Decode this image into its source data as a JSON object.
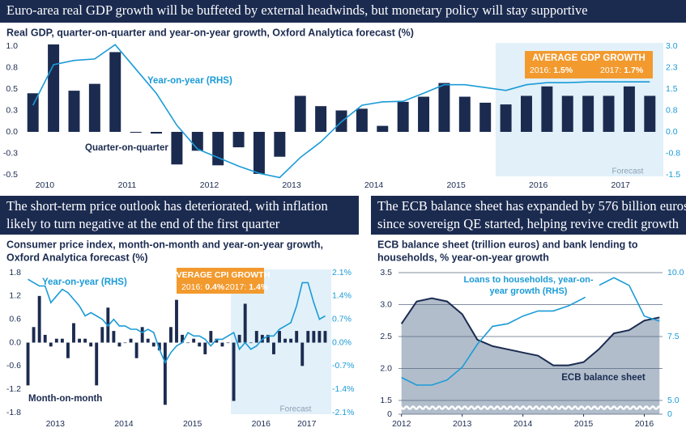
{
  "chart_data": [
    {
      "type": "bar",
      "title": [
        "Euro-area real GDP growth will be buffeted by external headwinds, but monetary policy will stay supportive"
      ],
      "subtitle": [
        "Real GDP, quarter-on-quarter and year-on-year growth, Oxford Analytica forecast (%)"
      ],
      "categories": [
        null,
        "2010",
        null,
        null,
        null,
        "2011",
        null,
        null,
        null,
        "2012",
        null,
        null,
        null,
        "2013",
        null,
        null,
        null,
        "2014",
        null,
        null,
        null,
        "2015",
        null,
        null,
        null,
        "2016",
        null,
        null,
        null,
        "2017",
        null
      ],
      "series": [
        {
          "name": "Quarter-on-quarter",
          "type": "bar",
          "color": "#1b2b50",
          "values": [
            0.45,
            1.02,
            0.48,
            0.56,
            0.93,
            -0.01,
            -0.02,
            -0.38,
            -0.22,
            -0.39,
            -0.18,
            -0.49,
            -0.29,
            0.42,
            0.3,
            0.25,
            0.27,
            0.07,
            0.35,
            0.41,
            0.57,
            0.41,
            0.34,
            0.32,
            0.42,
            0.53,
            0.42,
            0.42,
            0.42,
            0.53,
            0.42
          ]
        },
        {
          "name": "Year-on-year (RHS)",
          "type": "line",
          "axis": "y2",
          "color": "#1a9bd7",
          "values": [
            0.93,
            2.35,
            2.5,
            2.55,
            3.05,
            2.2,
            1.35,
            0.23,
            -0.6,
            -0.9,
            -1.2,
            -1.45,
            -1.6,
            -0.9,
            -0.35,
            0.35,
            0.93,
            1.05,
            1.07,
            1.35,
            1.65,
            1.65,
            1.55,
            1.45,
            1.65,
            1.72,
            1.72,
            1.75,
            1.75,
            1.75,
            1.75
          ]
        }
      ],
      "ylim": [
        -0.5,
        1.0
      ],
      "yticks": [
        {
          "value": 1.0,
          "label": "1.0"
        },
        {
          "value": 0.75,
          "label": "0.8"
        },
        {
          "value": 0.5,
          "label": "0.5"
        },
        {
          "value": 0.25,
          "label": "0.3"
        },
        {
          "value": 0,
          "label": "0.0"
        },
        {
          "value": -0.25,
          "label": "-0.3"
        },
        {
          "value": -0.5,
          "label": "-0.5"
        }
      ],
      "y2lim": [
        -1.5,
        3.0
      ],
      "y2ticks": [
        {
          "value": 3.0,
          "label": "3.0"
        },
        {
          "value": 2.25,
          "label": "2.3"
        },
        {
          "value": 1.5,
          "label": "1.5"
        },
        {
          "value": 0.75,
          "label": "0.8"
        },
        {
          "value": 0,
          "label": "0.0"
        },
        {
          "value": -0.75,
          "label": "-0.8"
        },
        {
          "value": -1.5,
          "label": "-1.5"
        }
      ],
      "grid": false,
      "forecast": {
        "label": "Forecast",
        "from_index": 23
      },
      "highlight": {
        "title": "AVERAGE GDP GROWTH",
        "items": [
          [
            "2016:",
            "1.5%"
          ],
          [
            "2017:",
            "1.7%"
          ]
        ]
      }
    },
    {
      "type": "bar",
      "title": [
        "The short-term price outlook has deteriorated, with inflation",
        "likely to turn negative at the end of the first quarter"
      ],
      "subtitle": [
        "Consumer price index, month-on-month and year-on-year growth,",
        "Oxford Analytica forecast (%)"
      ],
      "categories": [
        null,
        null,
        null,
        null,
        null,
        "2013",
        null,
        null,
        null,
        null,
        null,
        null,
        null,
        null,
        null,
        null,
        null,
        "2014",
        null,
        null,
        null,
        null,
        null,
        null,
        null,
        null,
        null,
        null,
        null,
        "2015",
        null,
        null,
        null,
        null,
        null,
        null,
        null,
        null,
        null,
        null,
        null,
        "2016",
        null,
        null,
        null,
        null,
        null,
        null,
        null,
        "2017",
        null,
        null,
        null
      ],
      "series": [
        {
          "name": "Month-on-month",
          "type": "bar",
          "color": "#1b2b50",
          "values": [
            -1.1,
            0.4,
            1.2,
            0.2,
            -0.1,
            0.1,
            0.1,
            -0.4,
            0.5,
            0.1,
            0.1,
            -0.1,
            -1.1,
            0.4,
            0.9,
            0.3,
            -0.1,
            0.0,
            0.1,
            -0.4,
            0.4,
            0.1,
            -0.1,
            -0.2,
            -1.6,
            0.4,
            1.1,
            0.2,
            0.0,
            0.1,
            -0.1,
            -0.3,
            0.3,
            0.1,
            -0.1,
            0.0,
            -1.5,
            0.2,
            1.0,
            0.0,
            0.3,
            0.2,
            0.2,
            -0.3,
            0.3,
            0.1,
            0.1,
            0.3,
            -0.6,
            0.3,
            0.3,
            0.3,
            0.3
          ]
        },
        {
          "name": "Year-on-year (RHS)",
          "type": "line",
          "axis": "y2",
          "color": "#1a9bd7",
          "values": [
            1.9,
            1.8,
            1.7,
            1.7,
            1.2,
            1.4,
            1.6,
            1.5,
            1.3,
            1.1,
            0.8,
            0.9,
            0.8,
            0.7,
            0.5,
            0.7,
            0.5,
            0.5,
            0.4,
            0.4,
            0.3,
            0.4,
            0.3,
            -0.2,
            -0.6,
            -0.3,
            -0.1,
            0.0,
            0.3,
            0.2,
            0.2,
            0.1,
            -0.1,
            0.1,
            0.1,
            0.2,
            0.3,
            -0.2,
            0.0,
            -0.2,
            -0.1,
            0.1,
            0.2,
            0.2,
            0.4,
            0.5,
            0.6,
            1.1,
            1.8,
            1.8,
            1.2,
            0.7,
            0.8
          ]
        }
      ],
      "ylim": [
        -1.8,
        1.8
      ],
      "yticks": [
        {
          "value": 1.8,
          "label": "1.8"
        },
        {
          "value": 1.2,
          "label": "1.2"
        },
        {
          "value": 0.6,
          "label": "0.6"
        },
        {
          "value": 0,
          "label": "0.0"
        },
        {
          "value": -0.6,
          "label": "-0.6"
        },
        {
          "value": -1.2,
          "label": "-1.2"
        },
        {
          "value": -1.8,
          "label": "-1.8"
        }
      ],
      "y2lim": [
        -2.1,
        2.1
      ],
      "y2ticks": [
        {
          "value": 2.1,
          "label": "2.1%"
        },
        {
          "value": 1.4,
          "label": "1.4%"
        },
        {
          "value": 0.7,
          "label": "0.7%"
        },
        {
          "value": 0,
          "label": "0.0%"
        },
        {
          "value": -0.7,
          "label": "-0.7%"
        },
        {
          "value": -1.4,
          "label": "-1.4%"
        },
        {
          "value": -2.1,
          "label": "-2.1%"
        }
      ],
      "grid": false,
      "forecast": {
        "label": "Forecast",
        "from_index": 36
      },
      "highlight": {
        "title": "AVERAGE CPI GROWTH",
        "items": [
          [
            "2016:",
            "0.4%"
          ],
          [
            "2017:",
            "1.4%"
          ]
        ]
      }
    },
    {
      "type": "area",
      "title": [
        "The ECB balance sheet has expanded by 576 billion euros",
        "since sovereign QE started, helping revive credit growth"
      ],
      "subtitle": [
        "ECB balance sheet (trillion euros) and bank lending to",
        "households, % year-on-year growth"
      ],
      "x": [
        2012,
        2012.25,
        2012.5,
        2012.75,
        2013,
        2013.25,
        2013.5,
        2013.75,
        2014,
        2014.25,
        2014.5,
        2014.75,
        2015,
        2015.25,
        2015.5,
        2015.75,
        2016,
        2016.25
      ],
      "series": [
        {
          "name": "ECB balance sheet",
          "type": "area",
          "color": "#1b2b50",
          "fill": "#b1bdcb",
          "values": [
            2.7,
            3.05,
            3.1,
            3.05,
            2.85,
            2.45,
            2.35,
            2.3,
            2.25,
            2.2,
            2.05,
            2.05,
            2.1,
            2.3,
            2.55,
            2.6,
            2.75,
            2.8
          ]
        },
        {
          "name": "Loans to households, year-on-year growth (RHS)",
          "type": "line",
          "axis": "y2",
          "color": "#1a9bd7",
          "values": [
            5.9,
            5.6,
            5.6,
            5.8,
            6.3,
            7.2,
            7.9,
            8.0,
            8.3,
            8.5,
            8.5,
            8.7,
            9.0,
            9.5,
            9.8,
            9.5,
            8.3,
            8.1
          ]
        }
      ],
      "xlim": [
        2011.95,
        2016.3
      ],
      "xticks": [
        2012,
        2013,
        2014,
        2015,
        2016
      ],
      "ylim": [
        0,
        3.5
      ],
      "ybreak": 1.5,
      "yticks": [
        {
          "value": 3.5,
          "label": "3.5"
        },
        {
          "value": 3.0,
          "label": "3.0"
        },
        {
          "value": 2.5,
          "label": "2.5"
        },
        {
          "value": 2.0,
          "label": "2.0"
        },
        {
          "value": 1.5,
          "label": "1.5"
        },
        0
      ],
      "y2lim": [
        0,
        10
      ],
      "y2break": 5,
      "y2ticks": [
        {
          "value": 10,
          "label": "10.0"
        },
        {
          "value": 7.5,
          "label": "7.5"
        },
        {
          "value": 5,
          "label": "5.0"
        },
        0
      ],
      "grid": true
    }
  ]
}
